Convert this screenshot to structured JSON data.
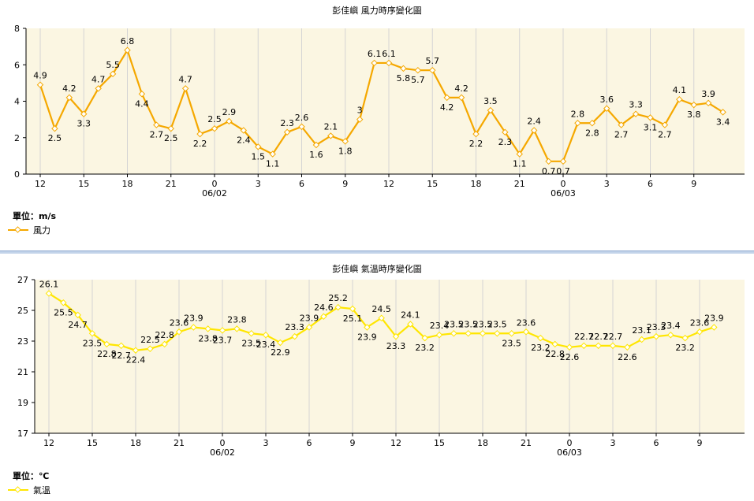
{
  "chart_data": [
    {
      "type": "line",
      "title": "彭佳嶼 風力時序變化圖",
      "unit_label": "單位：m/s",
      "legend": "風力",
      "color": "#f5a800",
      "x_ticks": [
        "12",
        "15",
        "18",
        "21",
        "0",
        "3",
        "6",
        "9",
        "12",
        "15",
        "18",
        "21",
        "0",
        "3",
        "6",
        "9"
      ],
      "date_labels": [
        "06/02",
        "06/03"
      ],
      "ylim": [
        0,
        8
      ],
      "y_ticks": [
        0,
        2,
        4,
        6,
        8
      ],
      "grid": true,
      "series": [
        {
          "name": "風力",
          "values": [
            4.9,
            2.5,
            4.2,
            3.3,
            4.7,
            5.5,
            6.8,
            4.4,
            2.7,
            2.5,
            4.7,
            2.2,
            2.5,
            2.9,
            2.4,
            1.5,
            1.1,
            2.3,
            2.6,
            1.6,
            2.1,
            1.8,
            3,
            6.1,
            6.1,
            5.8,
            5.7,
            5.7,
            4.2,
            4.2,
            2.2,
            3.5,
            2.3,
            1.1,
            2.4,
            0.7,
            0.7,
            2.8,
            2.8,
            3.6,
            2.7,
            3.3,
            3.1,
            2.7,
            4.1,
            3.8,
            3.9,
            3.4
          ]
        }
      ]
    },
    {
      "type": "line",
      "title": "彭佳嶼 氣溫時序變化圖",
      "unit_label": "單位：℃",
      "legend": "氣溫",
      "color": "#ffe600",
      "x_ticks": [
        "12",
        "15",
        "18",
        "21",
        "0",
        "3",
        "6",
        "9",
        "12",
        "15",
        "18",
        "21",
        "0",
        "3",
        "6",
        "9"
      ],
      "date_labels": [
        "06/02",
        "06/03"
      ],
      "ylim": [
        17,
        27
      ],
      "y_ticks": [
        17,
        19,
        21,
        23,
        25,
        27
      ],
      "grid": true,
      "series": [
        {
          "name": "氣溫",
          "values": [
            26.1,
            25.5,
            24.7,
            23.5,
            22.8,
            22.7,
            22.4,
            22.5,
            22.8,
            23.6,
            23.9,
            23.8,
            23.7,
            23.8,
            23.5,
            23.4,
            22.9,
            23.3,
            23.9,
            24.6,
            25.2,
            25.1,
            23.9,
            24.5,
            23.3,
            24.1,
            23.2,
            23.4,
            23.5,
            23.5,
            23.5,
            23.5,
            23.5,
            23.6,
            23.2,
            22.8,
            22.6,
            22.7,
            22.7,
            22.7,
            22.6,
            23.1,
            23.3,
            23.4,
            23.2,
            23.6,
            23.9
          ]
        }
      ]
    }
  ]
}
